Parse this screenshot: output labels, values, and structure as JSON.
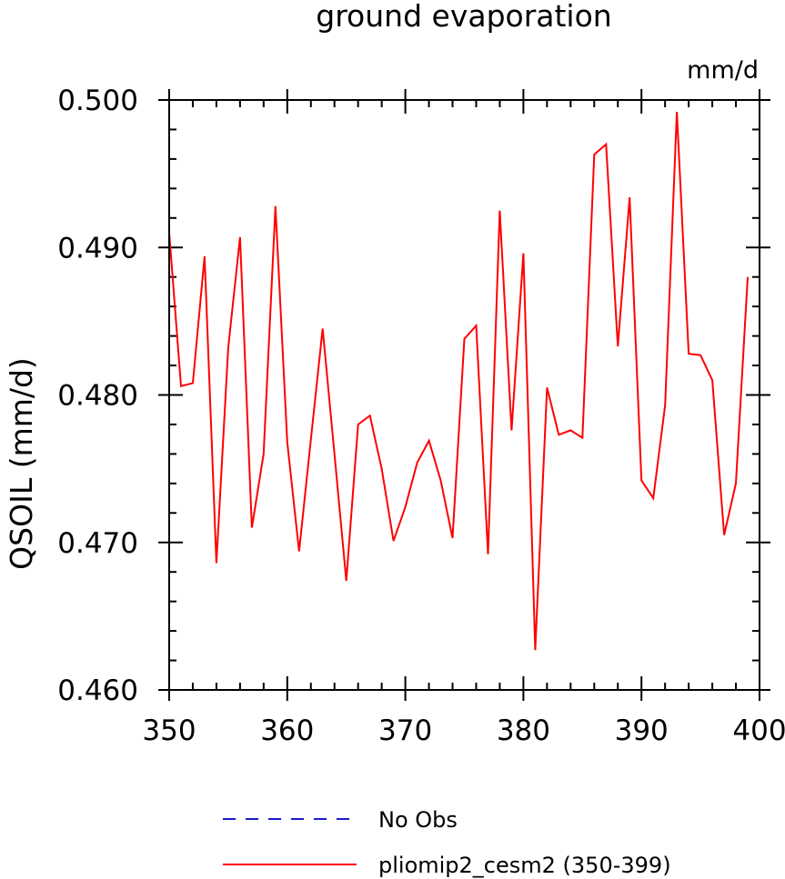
{
  "chart_data": {
    "type": "line",
    "title": "ground evaporation",
    "units": "mm/d",
    "ylabel": "QSOIL  (mm/d)",
    "xlabel": "",
    "xlim": [
      350,
      400
    ],
    "ylim": [
      0.46,
      0.5
    ],
    "x_ticks": [
      "350",
      "360",
      "370",
      "380",
      "390",
      "400"
    ],
    "y_ticks": [
      "0.460",
      "0.470",
      "0.480",
      "0.490",
      "0.500"
    ],
    "grid": false,
    "legend_position": "bottom",
    "series": [
      {
        "name": "No Obs",
        "color": "#1a1acc",
        "style": "dashed",
        "x": [],
        "values": []
      },
      {
        "name": "pliomip2_cesm2 (350-399)",
        "color": "#ff0000",
        "style": "solid",
        "x": [
          350,
          351,
          352,
          353,
          354,
          355,
          356,
          357,
          358,
          359,
          360,
          361,
          362,
          363,
          364,
          365,
          366,
          367,
          368,
          369,
          370,
          371,
          372,
          373,
          374,
          375,
          376,
          377,
          378,
          379,
          380,
          381,
          382,
          383,
          384,
          385,
          386,
          387,
          388,
          389,
          390,
          391,
          392,
          393,
          394,
          395,
          396,
          397,
          398,
          399
        ],
        "values": [
          0.491,
          0.4806,
          0.4808,
          0.4894,
          0.4686,
          0.4832,
          0.4907,
          0.471,
          0.476,
          0.4928,
          0.4768,
          0.4694,
          0.477,
          0.4845,
          0.476,
          0.4674,
          0.478,
          0.4786,
          0.475,
          0.4701,
          0.4724,
          0.4754,
          0.4769,
          0.4742,
          0.4703,
          0.4838,
          0.4847,
          0.4692,
          0.4925,
          0.4776,
          0.4896,
          0.4627,
          0.4805,
          0.4773,
          0.4776,
          0.4771,
          0.4963,
          0.497,
          0.4833,
          0.4934,
          0.4742,
          0.473,
          0.4793,
          0.4992,
          0.4828,
          0.4827,
          0.481,
          0.4705,
          0.474,
          0.488
        ]
      }
    ]
  }
}
